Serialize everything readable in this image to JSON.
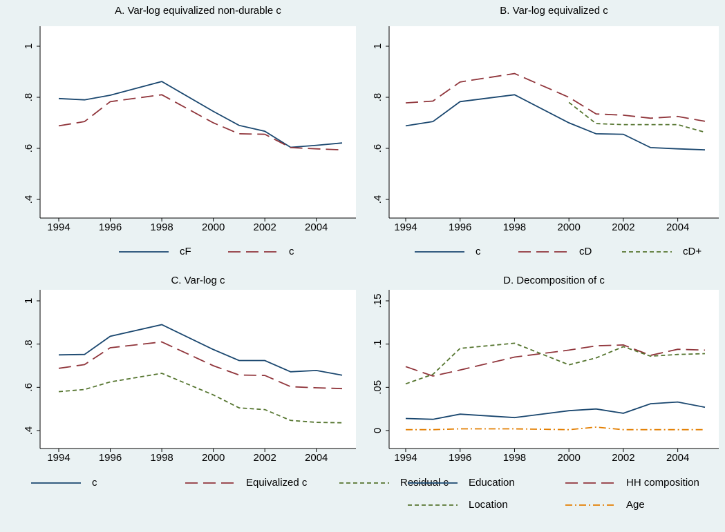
{
  "chart_data": [
    {
      "type": "line",
      "title": "A. Var-log equivalized non-durable c",
      "x": [
        1994,
        1995,
        1996,
        1998,
        2000,
        2001,
        2002,
        2003,
        2004,
        2005
      ],
      "xlim": [
        1994,
        2005
      ],
      "xticks": [
        1994,
        1996,
        1998,
        2000,
        2002,
        2004
      ],
      "ylim": [
        0.4,
        1
      ],
      "yticks": [
        {
          "value": 0.4,
          "label": ".4"
        },
        {
          "value": 0.6,
          "label": ".6"
        },
        {
          "value": 0.8,
          "label": ".8"
        },
        1
      ],
      "series": [
        {
          "name": "cF",
          "color": "#1a476f",
          "dash": "solid",
          "values": [
            0.795,
            0.79,
            0.808,
            0.862,
            0.745,
            0.69,
            0.667,
            0.604,
            0.612,
            0.621
          ]
        },
        {
          "name": "c",
          "color": "#90353b",
          "dash": "long",
          "values": [
            0.688,
            0.705,
            0.783,
            0.81,
            0.7,
            0.657,
            0.655,
            0.603,
            0.598,
            0.594
          ]
        }
      ]
    },
    {
      "type": "line",
      "title": "B. Var-log equivalized c",
      "x": [
        1994,
        1995,
        1996,
        1998,
        2000,
        2001,
        2002,
        2003,
        2004,
        2005
      ],
      "xlim": [
        1994,
        2005
      ],
      "xticks": [
        1994,
        1996,
        1998,
        2000,
        2002,
        2004
      ],
      "ylim": [
        0.4,
        1
      ],
      "yticks": [
        {
          "value": 0.4,
          "label": ".4"
        },
        {
          "value": 0.6,
          "label": ".6"
        },
        {
          "value": 0.8,
          "label": ".8"
        },
        1
      ],
      "series": [
        {
          "name": "c",
          "color": "#1a476f",
          "dash": "solid",
          "values": [
            0.688,
            0.705,
            0.783,
            0.81,
            0.7,
            0.657,
            0.655,
            0.603,
            0.598,
            0.594
          ]
        },
        {
          "name": "cD",
          "color": "#90353b",
          "dash": "long",
          "values": [
            0.778,
            0.785,
            0.86,
            0.893,
            0.8,
            0.735,
            0.73,
            0.718,
            0.725,
            0.706
          ]
        },
        {
          "name": "cD+",
          "color": "#55752f",
          "dash": "short",
          "values": [
            null,
            null,
            null,
            null,
            0.78,
            0.697,
            0.693,
            0.693,
            0.693,
            0.663
          ]
        }
      ]
    },
    {
      "type": "line",
      "title": "C. Var-log c",
      "x": [
        1994,
        1995,
        1996,
        1998,
        2000,
        2001,
        2002,
        2003,
        2004,
        2005
      ],
      "xlim": [
        1994,
        2005
      ],
      "xticks": [
        1994,
        1996,
        1998,
        2000,
        2002,
        2004
      ],
      "ylim": [
        0.4,
        1
      ],
      "yticks": [
        {
          "value": 0.4,
          "label": ".4"
        },
        {
          "value": 0.6,
          "label": ".6"
        },
        {
          "value": 0.8,
          "label": ".8"
        },
        1
      ],
      "series": [
        {
          "name": "c",
          "color": "#1a476f",
          "dash": "solid",
          "values": [
            0.75,
            0.752,
            0.836,
            0.89,
            0.775,
            0.724,
            0.724,
            0.672,
            0.678,
            0.656
          ]
        },
        {
          "name": "Equivalized c",
          "color": "#90353b",
          "dash": "long",
          "values": [
            0.688,
            0.705,
            0.783,
            0.81,
            0.7,
            0.657,
            0.655,
            0.603,
            0.598,
            0.594
          ]
        },
        {
          "name": "Residual c",
          "color": "#55752f",
          "dash": "short",
          "values": [
            0.58,
            0.59,
            0.625,
            0.665,
            0.565,
            0.505,
            0.497,
            0.447,
            0.438,
            0.436
          ]
        }
      ]
    },
    {
      "type": "line",
      "title": "D. Decomposition of c",
      "x": [
        1994,
        1995,
        1996,
        1998,
        2000,
        2001,
        2002,
        2003,
        2004,
        2005
      ],
      "xlim": [
        1994,
        2005
      ],
      "xticks": [
        1994,
        1996,
        1998,
        2000,
        2002,
        2004
      ],
      "ylim": [
        0,
        0.15
      ],
      "yticks": [
        0,
        {
          "value": 0.05,
          "label": ".05"
        },
        {
          "value": 0.1,
          "label": ".1"
        },
        {
          "value": 0.15,
          "label": ".15"
        }
      ],
      "series": [
        {
          "name": "Education",
          "color": "#1a476f",
          "dash": "solid",
          "values": [
            0.014,
            0.013,
            0.019,
            0.015,
            0.023,
            0.025,
            0.02,
            0.031,
            0.033,
            0.027
          ]
        },
        {
          "name": "HH composition",
          "color": "#90353b",
          "dash": "long",
          "values": [
            0.074,
            0.063,
            0.07,
            0.085,
            0.093,
            0.098,
            0.099,
            0.087,
            0.094,
            0.093
          ]
        },
        {
          "name": "Location",
          "color": "#55752f",
          "dash": "short",
          "values": [
            0.054,
            0.065,
            0.095,
            0.101,
            0.076,
            0.084,
            0.097,
            0.086,
            0.088,
            0.089
          ]
        },
        {
          "name": "Age",
          "color": "#e37e00",
          "dash": "dashdot",
          "values": [
            0.001,
            0.001,
            0.002,
            0.002,
            0.001,
            0.004,
            0.001,
            0.001,
            0.001,
            0.001
          ]
        }
      ]
    }
  ]
}
